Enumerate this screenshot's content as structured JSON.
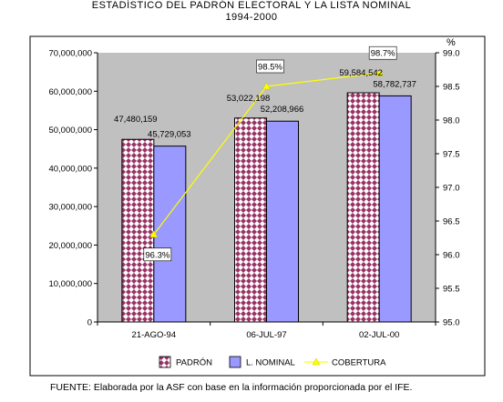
{
  "chart_data": {
    "type": "bar",
    "title": "ESTADÍSTICO DEL PADRÓN ELECTORAL Y LA LISTA NOMINAL",
    "subtitle": "1994-2000",
    "categories": [
      "21-AGO-94",
      "06-JUL-97",
      "02-JUL-00"
    ],
    "series": [
      {
        "name": "PADRÓN",
        "type": "bar",
        "axis": "left",
        "values": [
          47480159,
          53022198,
          59584542
        ],
        "labels": [
          "47,480,159",
          "53,022,198",
          "59,584,542"
        ],
        "color": "#993366"
      },
      {
        "name": "L. NOMINAL",
        "type": "bar",
        "axis": "left",
        "values": [
          45729053,
          52208966,
          58782737
        ],
        "labels": [
          "45,729,053",
          "52,208,966",
          "58,782,737"
        ],
        "color": "#9999FF"
      },
      {
        "name": "COBERTURA",
        "type": "line",
        "axis": "right",
        "values": [
          96.3,
          98.5,
          98.7
        ],
        "labels": [
          "96.3%",
          "98.5%",
          "98.7%"
        ],
        "color": "#FFFF00"
      }
    ],
    "left_axis": {
      "range": [
        0,
        70000000
      ],
      "ticks": [
        "0",
        "10,000,000",
        "20,000,000",
        "30,000,000",
        "40,000,000",
        "50,000,000",
        "60,000,000",
        "70,000,000"
      ]
    },
    "right_axis": {
      "label": "%",
      "range": [
        95.0,
        99.0
      ],
      "ticks": [
        "95.0",
        "95.5",
        "96.0",
        "96.5",
        "97.0",
        "97.5",
        "98.0",
        "98.5",
        "99.0"
      ]
    },
    "legend_position": "bottom",
    "plot_background": "#C0C0C0",
    "grid": "none"
  },
  "source_note": "FUENTE: Elaborada por la ASF con base en la información proporcionada por el IFE."
}
